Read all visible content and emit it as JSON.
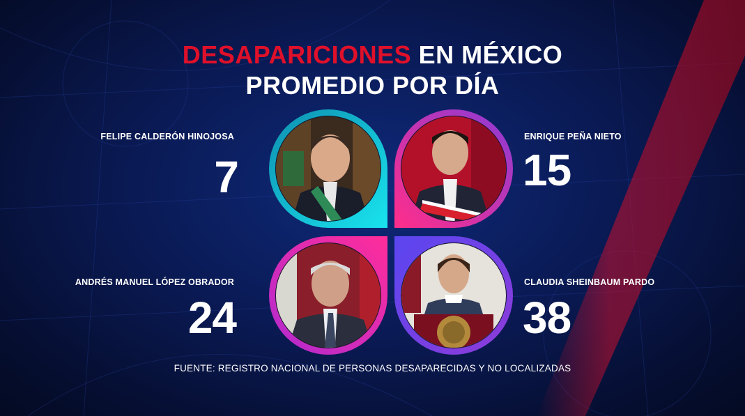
{
  "title": {
    "highlight": "DESAPARICIONES",
    "rest": " EN MÉXICO",
    "subtitle": "PROMEDIO POR DÍA"
  },
  "presidents": [
    {
      "name": "FELIPE CALDERÓN HINOJOSA",
      "value": "7"
    },
    {
      "name": "ENRIQUE PEÑA NIETO",
      "value": "15"
    },
    {
      "name": "ANDRÉS MANUEL LÓPEZ OBRADOR",
      "value": "24"
    },
    {
      "name": "CLAUDIA SHEINBAUM PARDO",
      "value": "38"
    }
  ],
  "source": "FUENTE: REGISTRO NACIONAL DE PERSONAS DESAPARECIDAS Y NO LOCALIZADAS",
  "colors": {
    "accent_red": "#e0102a",
    "cyan": "#19c6e6",
    "magenta": "#ff2d8a",
    "purple": "#6a4cff",
    "background": "#0a1a55"
  }
}
